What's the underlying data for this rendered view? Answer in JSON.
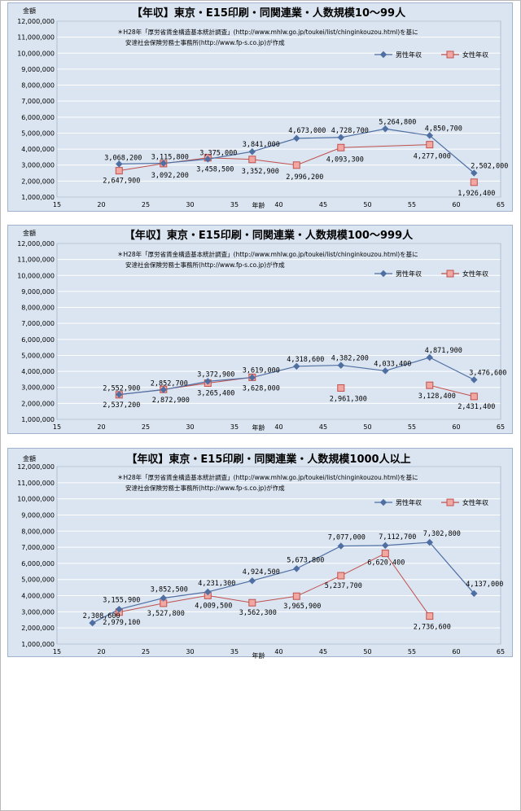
{
  "source_note_line1": "＊H28年「厚労省賃金構造基本統計調査」(http://www.mhlw.go.jp/toukei/list/chinginkouzou.html)を基に",
  "source_note_line2": "安達社会保険労務士事務所(http://www.fp-s.co.jp)が作成",
  "colors": {
    "male": "#4f6fa3",
    "female": "#c0504d",
    "female_fill": "#f2a8a2",
    "panel_bg": "#dbe5f1"
  },
  "chart_data": [
    {
      "type": "line",
      "title": "【年収】東京・E15印刷・同関連業・人数規模10～99人",
      "xlabel": "年齢",
      "ylabel": "金額",
      "xlim": [
        15,
        65
      ],
      "ylim": [
        1000000,
        12000000
      ],
      "xticks": [
        15,
        20,
        25,
        30,
        35,
        40,
        45,
        50,
        55,
        60,
        65
      ],
      "yticks": [
        1000000,
        2000000,
        3000000,
        4000000,
        5000000,
        6000000,
        7000000,
        8000000,
        9000000,
        10000000,
        11000000,
        12000000
      ],
      "ytick_labels": [
        "1,000,000",
        "2,000,000",
        "3,000,000",
        "4,000,000",
        "5,000,000",
        "6,000,000",
        "7,000,000",
        "8,000,000",
        "9,000,000",
        "10,000,000",
        "11,000,000",
        "12,000,000"
      ],
      "xtick_labels": [
        "15",
        "20",
        "25",
        "30",
        "35",
        "40",
        "45",
        "50",
        "55",
        "60",
        "65"
      ],
      "legend": "top-right",
      "series": [
        {
          "name": "男性年収",
          "x": [
            22,
            27,
            32,
            37,
            42,
            47,
            52,
            57,
            62
          ],
          "values": [
            3068200,
            3115800,
            3375000,
            3841000,
            4673000,
            4728700,
            5264800,
            4850700,
            2502000
          ],
          "labels": [
            "3,068,200",
            "3,115,800",
            "3,375,000",
            "3,841,000",
            "4,673,000",
            "4,728,700",
            "5,264,800",
            "4,850,700",
            "2,502,000"
          ]
        },
        {
          "name": "女性年収",
          "x": [
            22,
            27,
            32,
            37,
            42,
            47,
            57,
            62
          ],
          "values": [
            2647900,
            3092200,
            3458500,
            3352900,
            2996200,
            4093300,
            4277000,
            1926400
          ],
          "labels": [
            "2,647,900",
            "3,092,200",
            "3,458,500",
            "3,352,900",
            "2,996,200",
            "4,093,300",
            "4,277,000",
            "1,926,400"
          ],
          "connected": [
            true,
            true,
            true,
            true,
            true,
            true,
            false,
            true
          ]
        }
      ]
    },
    {
      "type": "line",
      "title": "【年収】東京・E15印刷・同関連業・人数規模100～999人",
      "xlabel": "年齢",
      "ylabel": "金額",
      "xlim": [
        15,
        65
      ],
      "ylim": [
        1000000,
        12000000
      ],
      "xticks": [
        15,
        20,
        25,
        30,
        35,
        40,
        45,
        50,
        55,
        60,
        65
      ],
      "yticks": [
        1000000,
        2000000,
        3000000,
        4000000,
        5000000,
        6000000,
        7000000,
        8000000,
        9000000,
        10000000,
        11000000,
        12000000
      ],
      "ytick_labels": [
        "1,000,000",
        "2,000,000",
        "3,000,000",
        "4,000,000",
        "5,000,000",
        "6,000,000",
        "7,000,000",
        "8,000,000",
        "9,000,000",
        "10,000,000",
        "11,000,000",
        "12,000,000"
      ],
      "xtick_labels": [
        "15",
        "20",
        "25",
        "30",
        "35",
        "40",
        "45",
        "50",
        "55",
        "60",
        "65"
      ],
      "legend": "top-right",
      "series": [
        {
          "name": "男性年収",
          "x": [
            22,
            27,
            32,
            37,
            42,
            47,
            52,
            57,
            62
          ],
          "values": [
            2552900,
            2852700,
            3372900,
            3619000,
            4318600,
            4382200,
            4033400,
            4871900,
            3476600
          ],
          "labels": [
            "2,552,900",
            "2,852,700",
            "3,372,900",
            "3,619,000",
            "4,318,600",
            "4,382,200",
            "4,033,400",
            "4,871,900",
            "3,476,600"
          ]
        },
        {
          "name": "女性年収",
          "x": [
            22,
            27,
            32,
            37,
            47,
            57,
            62
          ],
          "values": [
            2537200,
            2872900,
            3265400,
            3628000,
            2961300,
            3128400,
            2431400
          ],
          "labels": [
            "2,537,200",
            "2,872,900",
            "3,265,400",
            "3,628,000",
            "2,961,300",
            "3,128,400",
            "2,431,400"
          ],
          "connected": [
            true,
            true,
            true,
            false,
            false,
            true,
            true
          ]
        }
      ]
    },
    {
      "type": "line",
      "title": "【年収】東京・E15印刷・同関連業・人数規模1000人以上",
      "xlabel": "年齢",
      "ylabel": "金額",
      "xlim": [
        15,
        65
      ],
      "ylim": [
        1000000,
        12000000
      ],
      "xticks": [
        15,
        20,
        25,
        30,
        35,
        40,
        45,
        50,
        55,
        60,
        65
      ],
      "yticks": [
        1000000,
        2000000,
        3000000,
        4000000,
        5000000,
        6000000,
        7000000,
        8000000,
        9000000,
        10000000,
        11000000,
        12000000
      ],
      "ytick_labels": [
        "1,000,000",
        "2,000,000",
        "3,000,000",
        "4,000,000",
        "5,000,000",
        "6,000,000",
        "7,000,000",
        "8,000,000",
        "9,000,000",
        "10,000,000",
        "11,000,000",
        "12,000,000"
      ],
      "xtick_labels": [
        "15",
        "20",
        "25",
        "30",
        "35",
        "40",
        "45",
        "50",
        "55",
        "60",
        "65"
      ],
      "legend": "top-right",
      "series": [
        {
          "name": "男性年収",
          "x": [
            19,
            22,
            27,
            32,
            37,
            42,
            47,
            52,
            57,
            62
          ],
          "values": [
            2308600,
            3155900,
            3852500,
            4231300,
            4924500,
            5673800,
            7077000,
            7112700,
            7302800,
            4137000
          ],
          "labels": [
            "2,308,600",
            "3,155,900",
            "3,852,500",
            "4,231,300",
            "4,924,500",
            "5,673,800",
            "7,077,000",
            "7,112,700",
            "7,302,800",
            "4,137,000"
          ]
        },
        {
          "name": "女性年収",
          "x": [
            22,
            27,
            32,
            37,
            42,
            47,
            52,
            57
          ],
          "values": [
            2979100,
            3527800,
            4009500,
            3562300,
            3965900,
            5237700,
            6620400,
            2736600
          ],
          "labels": [
            "2,979,100",
            "3,527,800",
            "4,009,500",
            "3,562,300",
            "3,965,900",
            "5,237,700",
            "6,620,400",
            "2,736,600"
          ],
          "connected": [
            true,
            true,
            true,
            true,
            true,
            true,
            true,
            true
          ]
        }
      ]
    }
  ]
}
